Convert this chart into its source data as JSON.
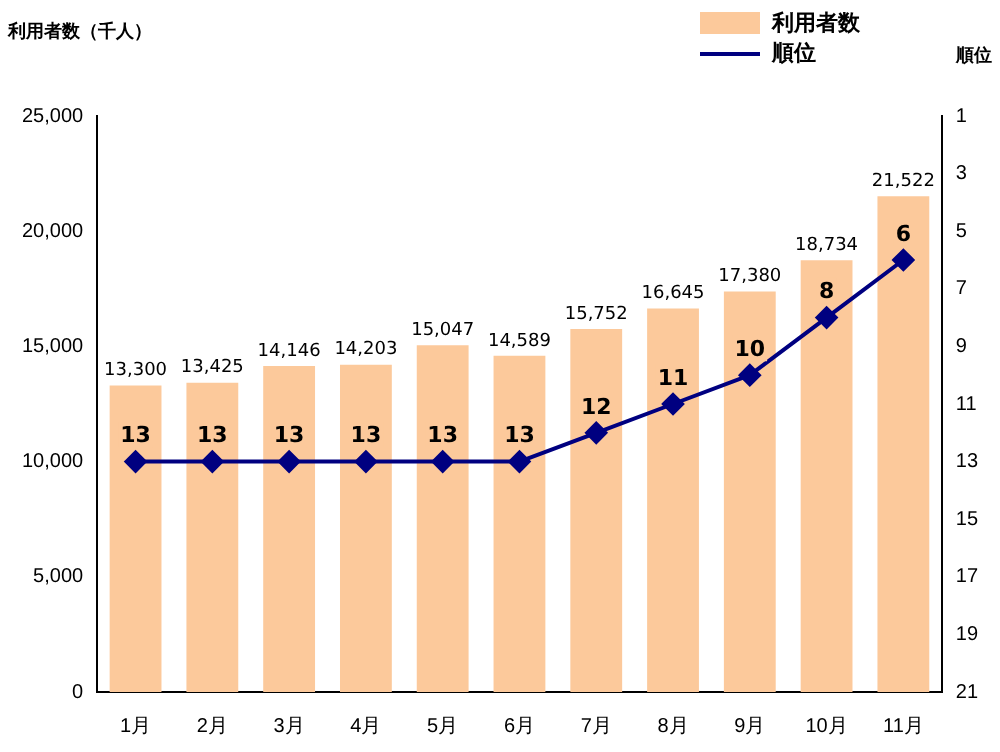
{
  "chart_data": {
    "type": "bar",
    "ylabel": "利用者数（千人）",
    "y2label": "順位",
    "categories": [
      "1月",
      "2月",
      "3月",
      "4月",
      "5月",
      "6月",
      "7月",
      "8月",
      "9月",
      "10月",
      "11月"
    ],
    "series": [
      {
        "name": "利用者数",
        "color": "#fcc99b",
        "values": [
          13300,
          13425,
          14146,
          14203,
          15047,
          14589,
          15752,
          16645,
          17380,
          18734,
          21522
        ],
        "value_labels": [
          "13,300",
          "13,425",
          "14,146",
          "14,203",
          "15,047",
          "14,589",
          "15,752",
          "16,645",
          "17,380",
          "18,734",
          "21,522"
        ]
      },
      {
        "name": "順位",
        "type": "line",
        "axis": "y2",
        "color": "#000080",
        "marker": "diamond",
        "values": [
          13,
          13,
          13,
          13,
          13,
          13,
          12,
          11,
          10,
          8,
          6
        ],
        "value_labels": [
          "13",
          "13",
          "13",
          "13",
          "13",
          "13",
          "12",
          "11",
          "10",
          "8",
          "6"
        ]
      }
    ],
    "ylim": [
      0,
      25000
    ],
    "yticks": [
      {
        "value": 0,
        "label": "0"
      },
      {
        "value": 5000,
        "label": "5,000"
      },
      {
        "value": 10000,
        "label": "10,000"
      },
      {
        "value": 15000,
        "label": "15,000"
      },
      {
        "value": 20000,
        "label": "20,000"
      },
      {
        "value": 25000,
        "label": "25,000"
      }
    ],
    "y2lim": [
      21,
      1
    ],
    "y2ticks": [
      1,
      3,
      5,
      7,
      9,
      11,
      13,
      15,
      17,
      19,
      21
    ],
    "grid": false,
    "legend": "top right"
  }
}
